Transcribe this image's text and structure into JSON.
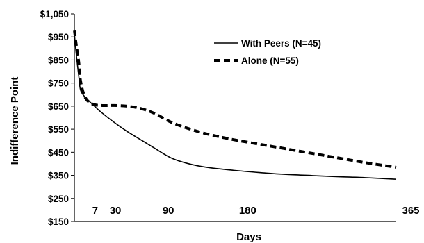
{
  "chart_data": {
    "type": "line",
    "xlabel": "Days",
    "ylabel": "Indifference Point",
    "ylim": [
      150,
      1050
    ],
    "yticks": [
      150,
      250,
      350,
      450,
      550,
      650,
      750,
      850,
      950,
      1050
    ],
    "ytick_labels": [
      "$150",
      "$250",
      "$350",
      "$450",
      "$550",
      "$650",
      "$750",
      "$850",
      "$950",
      "$1,050"
    ],
    "xlim": [
      0,
      365
    ],
    "xticks": [
      7,
      30,
      90,
      180,
      365
    ],
    "xtick_labels": [
      "7",
      "30",
      "90",
      "180",
      "365"
    ],
    "grid": false,
    "legend_position": "top-right",
    "series": [
      {
        "name": "With Peers (N=45)",
        "style": "solid",
        "color": "#000000",
        "x": [
          0,
          2,
          5,
          7,
          12,
          20,
          30,
          45,
          60,
          75,
          90,
          110,
          130,
          150,
          180,
          210,
          240,
          270,
          300,
          330,
          365
        ],
        "y": [
          965,
          880,
          780,
          720,
          690,
          660,
          625,
          580,
          540,
          505,
          470,
          425,
          400,
          385,
          372,
          362,
          354,
          349,
          344,
          340,
          333
        ]
      },
      {
        "name": "Alone (N=55)",
        "style": "dashed",
        "color": "#000000",
        "x": [
          0,
          2,
          5,
          7,
          12,
          20,
          30,
          45,
          60,
          75,
          90,
          110,
          130,
          150,
          180,
          210,
          240,
          270,
          300,
          330,
          365
        ],
        "y": [
          980,
          920,
          840,
          760,
          690,
          660,
          653,
          653,
          650,
          640,
          620,
          580,
          552,
          530,
          505,
          485,
          465,
          445,
          425,
          405,
          385
        ]
      }
    ]
  }
}
